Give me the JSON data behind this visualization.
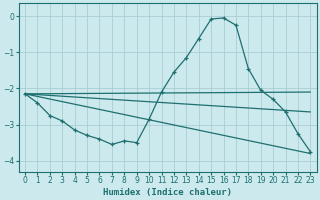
{
  "background_color": "#cce9ed",
  "grid_color": "#aacdd4",
  "line_color": "#1e7070",
  "xlabel": "Humidex (Indice chaleur)",
  "xlim": [
    -0.5,
    23.5
  ],
  "ylim": [
    -4.3,
    0.35
  ],
  "yticks": [
    0,
    -1,
    -2,
    -3,
    -4
  ],
  "xticks": [
    0,
    1,
    2,
    3,
    4,
    5,
    6,
    7,
    8,
    9,
    10,
    11,
    12,
    13,
    14,
    15,
    16,
    17,
    18,
    19,
    20,
    21,
    22,
    23
  ],
  "line1_x": [
    0,
    23
  ],
  "line1_y": [
    -2.15,
    -2.1
  ],
  "line2_x": [
    0,
    23
  ],
  "line2_y": [
    -2.15,
    -2.65
  ],
  "line3_x": [
    0,
    23
  ],
  "line3_y": [
    -2.15,
    -3.8
  ],
  "main_x": [
    0,
    1,
    2,
    3,
    4,
    5,
    6,
    7,
    8,
    9,
    10,
    11,
    12,
    13,
    14,
    15,
    16,
    17,
    18,
    19,
    20,
    21,
    22,
    23
  ],
  "main_y": [
    -2.15,
    -2.4,
    -2.75,
    -2.9,
    -3.15,
    -3.3,
    -3.4,
    -3.55,
    -3.45,
    -3.5,
    -2.85,
    -2.1,
    -1.55,
    -1.15,
    -0.62,
    -0.08,
    -0.05,
    -0.25,
    -1.45,
    -2.05,
    -2.3,
    -2.65,
    -3.25,
    -3.75
  ]
}
